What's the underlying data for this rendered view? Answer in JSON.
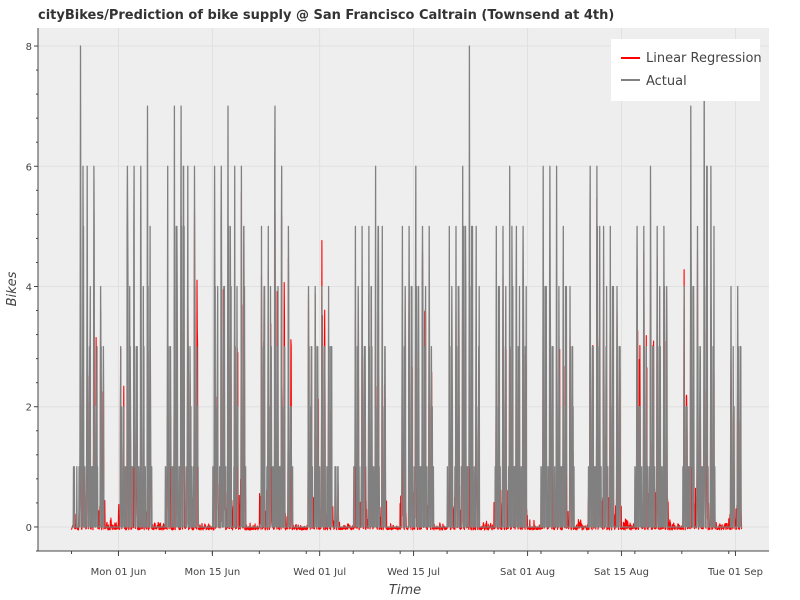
{
  "chart_data": {
    "type": "line",
    "title": "cityBikes/Prediction of bike supply @ San Francisco Caltrain (Townsend at 4th)",
    "xlabel": "Time",
    "ylabel": "Bikes",
    "x_range": [
      "2015-05-20",
      "2015-09-06"
    ],
    "ylim": [
      -0.4,
      8.3
    ],
    "yticks": [
      0,
      2,
      4,
      6,
      8
    ],
    "ytick_labels": [
      "0",
      "2",
      "4",
      "6",
      "8"
    ],
    "xticks": [
      "2015-06-01",
      "2015-06-15",
      "2015-07-01",
      "2015-07-15",
      "2015-08-01",
      "2015-08-15",
      "2015-09-01"
    ],
    "xtick_labels": [
      "Mon 01 Jun",
      "Mon 15 Jun",
      "Wed 01 Jul",
      "Wed 15 Jul",
      "Sat 01 Aug",
      "Sat 15 Aug",
      "Tue 01 Sep"
    ],
    "grid": true,
    "legend_position": "top-right",
    "series": [
      {
        "name": "Linear Regression",
        "color": "#ff0000",
        "x": [
          "2015-05-25",
          "2015-05-26",
          "2015-05-27",
          "2015-05-28",
          "2015-05-29",
          "2015-05-30",
          "2015-05-31",
          "2015-06-01",
          "2015-06-02",
          "2015-06-03",
          "2015-06-04",
          "2015-06-05",
          "2015-06-06",
          "2015-06-07",
          "2015-06-08",
          "2015-06-09",
          "2015-06-10",
          "2015-06-11",
          "2015-06-12",
          "2015-06-13",
          "2015-06-14",
          "2015-06-15",
          "2015-06-16",
          "2015-06-17",
          "2015-06-18",
          "2015-06-19",
          "2015-06-20",
          "2015-06-21",
          "2015-06-22",
          "2015-06-23",
          "2015-06-24",
          "2015-06-25",
          "2015-06-26",
          "2015-06-27",
          "2015-06-28",
          "2015-06-29",
          "2015-06-30",
          "2015-07-01",
          "2015-07-02",
          "2015-07-03",
          "2015-07-04",
          "2015-07-05",
          "2015-07-06",
          "2015-07-07",
          "2015-07-08",
          "2015-07-09",
          "2015-07-10",
          "2015-07-11",
          "2015-07-12",
          "2015-07-13",
          "2015-07-14",
          "2015-07-15",
          "2015-07-16",
          "2015-07-17",
          "2015-07-18",
          "2015-07-19",
          "2015-07-20",
          "2015-07-21",
          "2015-07-22",
          "2015-07-23",
          "2015-07-24",
          "2015-07-25",
          "2015-07-26",
          "2015-07-27",
          "2015-07-28",
          "2015-07-29",
          "2015-07-30",
          "2015-07-31",
          "2015-08-01",
          "2015-08-02",
          "2015-08-03",
          "2015-08-04",
          "2015-08-05",
          "2015-08-06",
          "2015-08-07",
          "2015-08-08",
          "2015-08-09",
          "2015-08-10",
          "2015-08-11",
          "2015-08-12",
          "2015-08-13",
          "2015-08-14",
          "2015-08-15",
          "2015-08-16",
          "2015-08-17",
          "2015-08-18",
          "2015-08-19",
          "2015-08-20",
          "2015-08-21",
          "2015-08-22",
          "2015-08-23",
          "2015-08-24",
          "2015-08-25",
          "2015-08-26",
          "2015-08-27",
          "2015-08-28",
          "2015-08-29",
          "2015-08-30",
          "2015-08-31",
          "2015-09-01"
        ],
        "values": [
          0.3,
          3.5,
          3.9,
          4.0,
          3.6,
          1.3,
          0.7,
          3.0,
          3.0,
          2.4,
          3.5,
          3.9,
          0.7,
          0.6,
          2.4,
          3.9,
          5.2,
          4.3,
          5.3,
          0.5,
          0.4,
          3.5,
          5.2,
          4.1,
          4.0,
          5.6,
          0.5,
          0.4,
          4.2,
          4.3,
          5.3,
          5.2,
          4.5,
          0.6,
          0.3,
          3.9,
          3.9,
          4.8,
          2.7,
          1.0,
          0.3,
          0.4,
          3.5,
          4.1,
          3.9,
          3.6,
          3.8,
          0.6,
          0.4,
          3.7,
          4.1,
          3.9,
          4.6,
          3.8,
          0.6,
          0.4,
          3.2,
          3.6,
          5.0,
          4.1,
          3.5,
          0.7,
          0.5,
          3.6,
          4.2,
          4.2,
          4.3,
          4.1,
          1.0,
          0.4,
          4.6,
          4.1,
          3.8,
          3.5,
          3.2,
          1.2,
          0.4,
          4.2,
          5.5,
          4.0,
          4.1,
          3.6,
          1.0,
          0.5,
          4.3,
          4.6,
          4.3,
          4.5,
          4.0,
          1.0,
          0.4,
          4.3,
          4.5,
          4.6,
          4.1,
          3.7,
          0.8,
          0.6,
          2.8,
          3.3
        ]
      },
      {
        "name": "Actual",
        "color": "#808080",
        "x": [
          "2015-05-25",
          "2015-05-26",
          "2015-05-27",
          "2015-05-28",
          "2015-05-29",
          "2015-05-30",
          "2015-05-31",
          "2015-06-01",
          "2015-06-02",
          "2015-06-03",
          "2015-06-04",
          "2015-06-05",
          "2015-06-06",
          "2015-06-07",
          "2015-06-08",
          "2015-06-09",
          "2015-06-10",
          "2015-06-11",
          "2015-06-12",
          "2015-06-13",
          "2015-06-14",
          "2015-06-15",
          "2015-06-16",
          "2015-06-17",
          "2015-06-18",
          "2015-06-19",
          "2015-06-20",
          "2015-06-21",
          "2015-06-22",
          "2015-06-23",
          "2015-06-24",
          "2015-06-25",
          "2015-06-26",
          "2015-06-27",
          "2015-06-28",
          "2015-06-29",
          "2015-06-30",
          "2015-07-01",
          "2015-07-02",
          "2015-07-03",
          "2015-07-04",
          "2015-07-05",
          "2015-07-06",
          "2015-07-07",
          "2015-07-08",
          "2015-07-09",
          "2015-07-10",
          "2015-07-11",
          "2015-07-12",
          "2015-07-13",
          "2015-07-14",
          "2015-07-15",
          "2015-07-16",
          "2015-07-17",
          "2015-07-18",
          "2015-07-19",
          "2015-07-20",
          "2015-07-21",
          "2015-07-22",
          "2015-07-23",
          "2015-07-24",
          "2015-07-25",
          "2015-07-26",
          "2015-07-27",
          "2015-07-28",
          "2015-07-29",
          "2015-07-30",
          "2015-07-31",
          "2015-08-01",
          "2015-08-02",
          "2015-08-03",
          "2015-08-04",
          "2015-08-05",
          "2015-08-06",
          "2015-08-07",
          "2015-08-08",
          "2015-08-09",
          "2015-08-10",
          "2015-08-11",
          "2015-08-12",
          "2015-08-13",
          "2015-08-14",
          "2015-08-15",
          "2015-08-16",
          "2015-08-17",
          "2015-08-18",
          "2015-08-19",
          "2015-08-20",
          "2015-08-21",
          "2015-08-22",
          "2015-08-23",
          "2015-08-24",
          "2015-08-25",
          "2015-08-26",
          "2015-08-27",
          "2015-08-28",
          "2015-08-29",
          "2015-08-30",
          "2015-08-31",
          "2015-09-01"
        ],
        "values": [
          1,
          8,
          6,
          6,
          4,
          1,
          1,
          3,
          6,
          6,
          6,
          7,
          1,
          1,
          6,
          7,
          7,
          6,
          6,
          1,
          1,
          6,
          6,
          7,
          6,
          6,
          1,
          1,
          5,
          5,
          7,
          6,
          5,
          1,
          1,
          4,
          4,
          4,
          4,
          1,
          1,
          1,
          5,
          5,
          5,
          6,
          5,
          1,
          1,
          5,
          5,
          6,
          5,
          5,
          1,
          1,
          5,
          5,
          6,
          8,
          5,
          1,
          1,
          5,
          5,
          6,
          5,
          5,
          1,
          1,
          6,
          6,
          6,
          5,
          4,
          1,
          1,
          6,
          6,
          5,
          5,
          4,
          1,
          1,
          5,
          5,
          6,
          5,
          5,
          1,
          1,
          4,
          7,
          5,
          8,
          6,
          1,
          1,
          4,
          4
        ]
      }
    ]
  }
}
